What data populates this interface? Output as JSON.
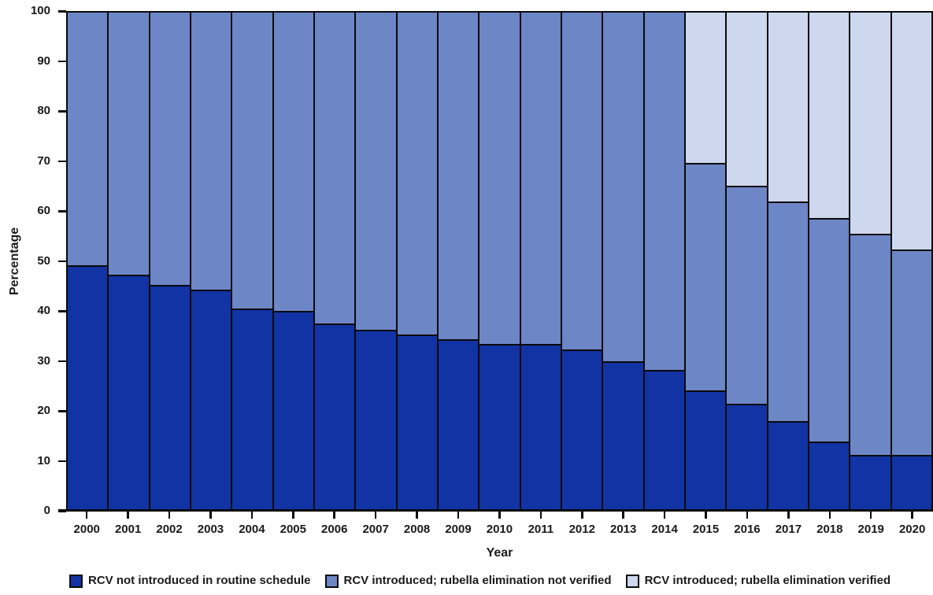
{
  "figure": {
    "ylabel": "Percentage",
    "xlabel": "Year",
    "background": "#ffffff",
    "axis_color": "#0a0a0a"
  },
  "chart_data": {
    "type": "bar",
    "stacked": true,
    "title": "",
    "xlabel": "Year",
    "ylabel": "Percentage",
    "ylim": [
      0,
      100
    ],
    "yticks": [
      0,
      10,
      20,
      30,
      40,
      50,
      60,
      70,
      80,
      90,
      100
    ],
    "grid": false,
    "legend_position": "bottom",
    "categories": [
      "2000",
      "2001",
      "2002",
      "2003",
      "2004",
      "2005",
      "2006",
      "2007",
      "2008",
      "2009",
      "2010",
      "2011",
      "2012",
      "2013",
      "2014",
      "2015",
      "2016",
      "2017",
      "2018",
      "2019",
      "2020"
    ],
    "series": [
      {
        "name": "RCV not introduced in routine schedule",
        "color": "#1133a4",
        "values": [
          49,
          47,
          45,
          44,
          40.3,
          39.7,
          37.2,
          36,
          35,
          34,
          33,
          33,
          32,
          29.5,
          27.8,
          23.7,
          21.1,
          17.5,
          13.4,
          10.7,
          10.7
        ]
      },
      {
        "name": "RCV introduced; rubella elimination not verified",
        "color": "#6c86c6",
        "values": [
          51,
          53,
          55,
          56,
          59.7,
          60.3,
          62.8,
          64,
          65,
          66,
          67,
          67,
          68,
          70.5,
          72.2,
          45.9,
          43.8,
          44.3,
          44.9,
          44.5,
          41.3
        ]
      },
      {
        "name": "RCV introduced; rubella elimination verified",
        "color": "#cdd7ee",
        "values": [
          0,
          0,
          0,
          0,
          0,
          0,
          0,
          0,
          0,
          0,
          0,
          0,
          0,
          0,
          0,
          30.4,
          35.1,
          38.2,
          41.7,
          44.8,
          48
        ]
      }
    ]
  }
}
